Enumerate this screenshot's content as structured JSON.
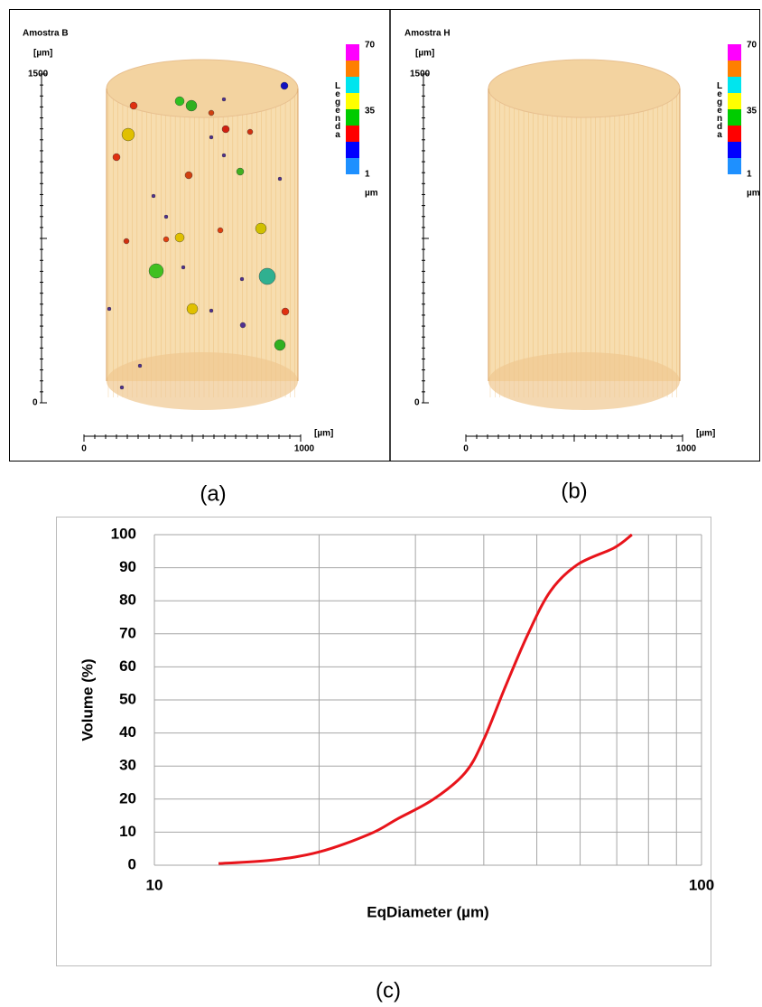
{
  "panels": [
    {
      "title": "Amostra B",
      "y_unit": "[µm]",
      "y_top": "1500",
      "y_bottom": "0",
      "x_left": "0",
      "x_right": "1000",
      "x_unit": "[µm]",
      "legend_title": "Legenda",
      "legend_top": "70",
      "legend_mid": "35",
      "legend_bottom": "1",
      "legend_unit": "µm"
    },
    {
      "title": "Amostra H",
      "y_unit": "[µm]",
      "y_top": "1500",
      "y_bottom": "0",
      "x_left": "0",
      "x_right": "1000",
      "x_unit": "[µm]",
      "legend_title": "Legenda",
      "legend_top": "70",
      "legend_mid": "35",
      "legend_bottom": "1",
      "legend_unit": "µm"
    }
  ],
  "captions": [
    "(a)",
    "(b)",
    "(c)"
  ],
  "chart_data": {
    "type": "line",
    "x_label": "EqDiameter (µm)",
    "y_label": "Volume (%)",
    "x_scale": "log",
    "xlim": [
      10,
      100
    ],
    "xticks": [
      10,
      100
    ],
    "minor_xticks": [
      20,
      30,
      40,
      50,
      60,
      70,
      80,
      90
    ],
    "ylim": [
      0,
      100
    ],
    "yticks": [
      0,
      10,
      20,
      30,
      40,
      50,
      60,
      70,
      80,
      90,
      100
    ],
    "grid": true,
    "color": "#e8141b",
    "x": [
      13.1,
      16.3,
      20,
      24.8,
      27.8,
      32.4,
      37,
      40,
      43.8,
      48.2,
      53,
      59.4,
      69.2,
      74.6
    ],
    "values": [
      0.5,
      1.5,
      4,
      9.5,
      14,
      20,
      28,
      38,
      54,
      70,
      83,
      91,
      96,
      100
    ]
  }
}
